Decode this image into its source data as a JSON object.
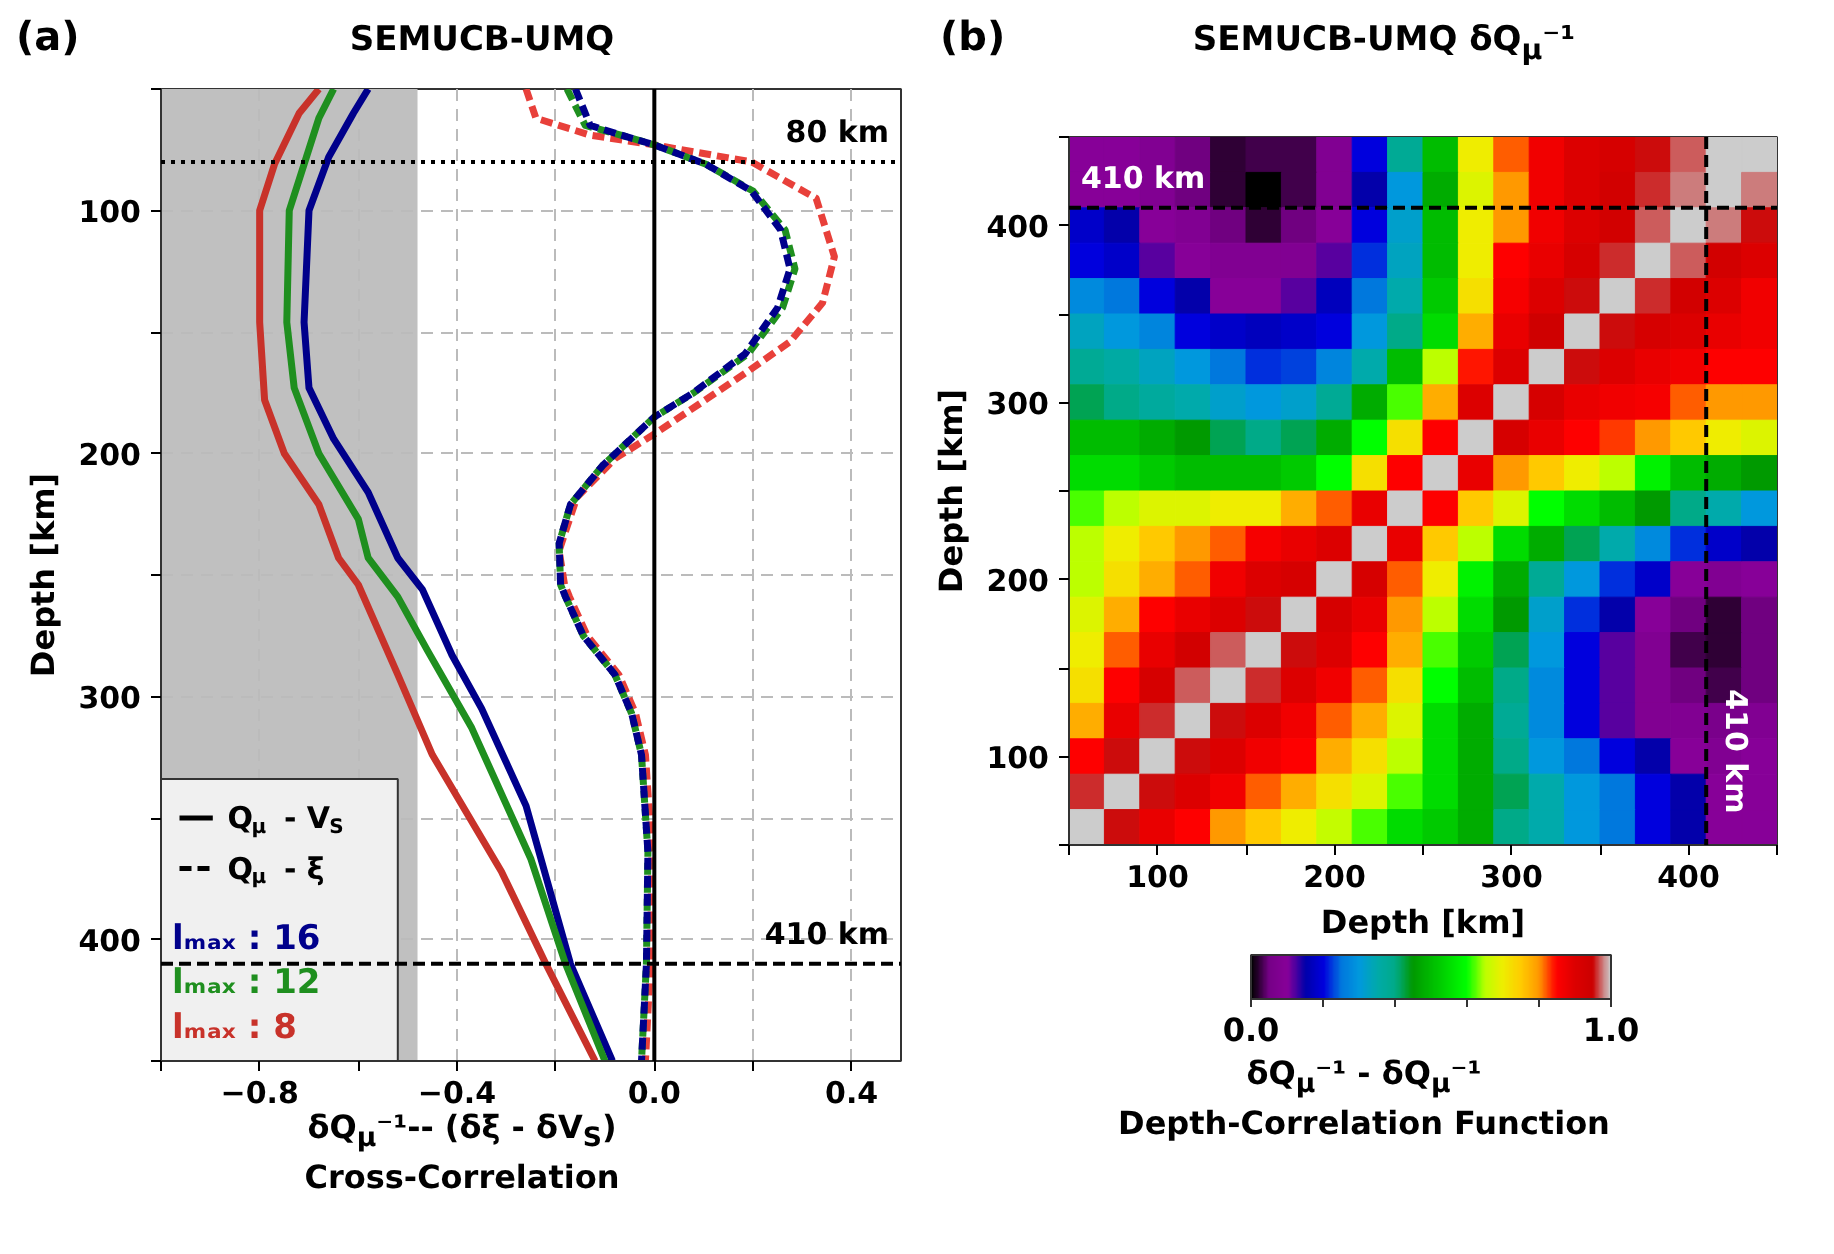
{
  "chart_data": [
    {
      "type": "line",
      "title": "SEMUCB-UMQ",
      "annotations": [
        "(a)",
        "Q$_{μ}$ - V$_{S}$",
        "Q$_{μ}$ - ξ"
      ],
      "xlabel": "δQ$_{μ}$⁻¹-- (δξ - δV$_{S}$)\nCross-Correlation",
      "ylabel": "Depth [km]",
      "xlim": [
        -1.0,
        0.5
      ],
      "ylim": [
        450,
        50
      ],
      "xticks": [
        {
          "value": -1.0,
          "label": null
        },
        {
          "value": -0.8,
          "label": "−0.8"
        },
        {
          "value": -0.6,
          "label": null
        },
        {
          "value": -0.4,
          "label": "−0.4"
        },
        {
          "value": -0.2,
          "label": null
        },
        {
          "value": 0,
          "label": "0.0"
        },
        {
          "value": 0.2,
          "label": null
        },
        0.4
      ],
      "yticks": [
        {
          "value": 50,
          "label": null
        },
        100,
        {
          "value": 150,
          "label": null
        },
        200,
        {
          "value": 250,
          "label": null
        },
        300,
        {
          "value": 350,
          "label": null
        },
        400,
        {
          "value": 450,
          "label": null
        }
      ],
      "grid": true,
      "legend": "bottom left",
      "bands": [
        {
          "axis": "x",
          "from": -1.0,
          "to": -0.48,
          "color": "#c0c0c0"
        }
      ],
      "ref_lines": [
        {
          "axis": "y",
          "value": 80,
          "label": "80 km",
          "line_style": "dotted",
          "color": "#000000"
        },
        {
          "axis": "y",
          "value": 410,
          "label": "410 km",
          "line_style": "dashed",
          "color": "#000000"
        },
        {
          "axis": "x",
          "value": 0,
          "line_style": "solid",
          "color": "#000000"
        }
      ],
      "series": [
        {
          "name": "lₘₐₓ : 16",
          "color": "#00008b",
          "line_style": "solid",
          "x": [
            -0.58,
            -0.61,
            -0.66,
            -0.7,
            -0.71,
            -0.7,
            -0.65,
            -0.58,
            -0.52,
            -0.47,
            -0.41,
            -0.35,
            -0.26,
            -0.17,
            -0.085
          ],
          "values": [
            50,
            60,
            78,
            100,
            146,
            173,
            194,
            216,
            243,
            256,
            283,
            305,
            345,
            410,
            450
          ]
        },
        {
          "name": "lₘₐₓ : 12",
          "color": "#1f8f1f",
          "line_style": "solid",
          "x": [
            -0.65,
            -0.68,
            -0.71,
            -0.74,
            -0.745,
            -0.73,
            -0.68,
            -0.6,
            -0.58,
            -0.52,
            -0.46,
            -0.37,
            -0.25,
            -0.18,
            -0.1
          ],
          "values": [
            50,
            62,
            81,
            100,
            146,
            173,
            200,
            227,
            243,
            259,
            281,
            313,
            367,
            410,
            450
          ]
        },
        {
          "name": "lₘₐₓ : 8",
          "color": "#c8322a",
          "line_style": "solid",
          "x": [
            -0.68,
            -0.72,
            -0.77,
            -0.8,
            -0.8,
            -0.79,
            -0.75,
            -0.68,
            -0.64,
            -0.6,
            -0.52,
            -0.45,
            -0.31,
            -0.22,
            -0.12
          ],
          "values": [
            50,
            60,
            81,
            100,
            146,
            178,
            200,
            221,
            243,
            254,
            291,
            324,
            372,
            410,
            450
          ]
        },
        {
          "color": "#e8403a",
          "line_style": "dashed",
          "x": [
            -0.26,
            -0.24,
            -0.13,
            0.0,
            0.197,
            0.328,
            0.365,
            0.341,
            0.275,
            0.184,
            0.0,
            -0.079,
            -0.157,
            -0.193,
            -0.182,
            -0.172,
            -0.136,
            -0.072,
            -0.038,
            -0.018,
            -0.005,
            -0.008,
            -0.018
          ],
          "values": [
            50,
            62,
            69,
            73,
            80,
            95,
            119,
            138,
            154,
            167,
            192,
            202,
            218,
            240,
            254,
            259,
            275,
            291,
            307,
            324,
            364,
            410,
            450
          ]
        },
        {
          "color": "#1f8f1f",
          "line_style": "dashed",
          "x": [
            -0.177,
            -0.14,
            -0.05,
            0.0,
            0.105,
            0.2,
            0.265,
            0.285,
            0.26,
            0.19,
            0.08,
            0.0,
            -0.105,
            -0.17,
            -0.193,
            -0.19,
            -0.18,
            -0.144,
            -0.08,
            -0.046,
            -0.026,
            -0.013,
            -0.016,
            -0.026
          ],
          "values": [
            50,
            65,
            70,
            73,
            81,
            92,
            108,
            124,
            140,
            159,
            175,
            185,
            205,
            221,
            237,
            254,
            259,
            275,
            291,
            307,
            324,
            364,
            410,
            450
          ]
        },
        {
          "color": "#00008b",
          "line_style": "dashed",
          "x": [
            -0.16,
            -0.13,
            -0.05,
            0.0,
            0.105,
            0.197,
            0.256,
            0.275,
            0.25,
            0.184,
            0.079,
            0.0,
            -0.105,
            -0.17,
            -0.193,
            -0.19,
            -0.18,
            -0.144,
            -0.08,
            -0.046,
            -0.026,
            -0.013,
            -0.016,
            -0.026
          ],
          "values": [
            50,
            65,
            70,
            73,
            81,
            92,
            108,
            124,
            140,
            159,
            175,
            185,
            205,
            221,
            237,
            254,
            259,
            275,
            291,
            307,
            324,
            364,
            410,
            450
          ]
        }
      ]
    },
    {
      "type": "heatmap",
      "title": "SEMUCB-UMQ δQ$_{μ}$⁻¹",
      "annotations": [
        "(b)"
      ],
      "xlabel": "Depth [km]",
      "ylabel": "Depth [km]",
      "clabel": "δQ$_{μ}$⁻¹ - δQ$_{μ}$⁻¹\nDepth-Correlation Function",
      "x": [
        60,
        80,
        100,
        120,
        140,
        160,
        180,
        200,
        220,
        240,
        260,
        280,
        300,
        320,
        340,
        360,
        380,
        400,
        420,
        440
      ],
      "xlim": [
        50,
        450
      ],
      "ylim": [
        50,
        450
      ],
      "xticks": [
        {
          "value": 50,
          "label": null
        },
        100,
        {
          "value": 150,
          "label": null
        },
        200,
        {
          "value": 250,
          "label": null
        },
        300,
        {
          "value": 350,
          "label": null
        },
        400,
        {
          "value": 450,
          "label": null
        }
      ],
      "yticks": [
        {
          "value": 50,
          "label": null
        },
        100,
        {
          "value": 150,
          "label": null
        },
        200,
        {
          "value": 250,
          "label": null
        },
        300,
        {
          "value": 350,
          "label": null
        },
        400,
        {
          "value": 450,
          "label": null
        }
      ],
      "clim": [
        0,
        1
      ],
      "cticks": [
        {
          "value": 0,
          "label": "0.0"
        },
        {
          "value": 0.2,
          "label": null
        },
        {
          "value": 0.4,
          "label": null
        },
        {
          "value": 0.6,
          "label": null
        },
        {
          "value": 0.8,
          "label": null
        },
        {
          "value": 1,
          "label": "1.0"
        }
      ],
      "ref_lines": [
        {
          "axis": "y",
          "value": 410,
          "label": "410 km",
          "line_style": "dashed",
          "color": "#000000"
        },
        {
          "axis": "x",
          "value": 410,
          "label": "410 km",
          "line_style": "dashed",
          "color": "#000000"
        }
      ],
      "cells": [
        [
          0.1,
          0.1,
          0.08,
          0.05,
          0.02,
          0.03,
          0.03,
          0.08,
          0.2,
          0.38,
          0.5,
          0.7,
          0.82,
          0.87,
          0.9,
          0.92,
          0.95,
          0.97,
          1,
          1
        ],
        [
          0.1,
          0.1,
          0.08,
          0.05,
          0.02,
          0,
          0.03,
          0.08,
          0.15,
          0.3,
          0.48,
          0.68,
          0.8,
          0.87,
          0.9,
          0.93,
          0.96,
          0.98,
          1,
          0.98
        ],
        [
          0.18,
          0.15,
          0.1,
          0.08,
          0.05,
          0.02,
          0.05,
          0.1,
          0.2,
          0.32,
          0.5,
          0.7,
          0.8,
          0.87,
          0.9,
          0.93,
          0.97,
          1,
          0.98,
          0.95
        ],
        [
          0.2,
          0.18,
          0.12,
          0.1,
          0.08,
          0.08,
          0.08,
          0.12,
          0.22,
          0.33,
          0.5,
          0.7,
          0.85,
          0.88,
          0.92,
          0.96,
          1,
          0.97,
          0.93,
          0.9
        ],
        [
          0.28,
          0.25,
          0.2,
          0.15,
          0.1,
          0.1,
          0.12,
          0.17,
          0.25,
          0.35,
          0.52,
          0.72,
          0.86,
          0.9,
          0.95,
          1,
          0.96,
          0.93,
          0.9,
          0.87
        ],
        [
          0.33,
          0.3,
          0.27,
          0.2,
          0.18,
          0.17,
          0.18,
          0.2,
          0.3,
          0.4,
          0.55,
          0.78,
          0.88,
          0.94,
          1,
          0.95,
          0.92,
          0.9,
          0.88,
          0.87
        ],
        [
          0.38,
          0.36,
          0.33,
          0.3,
          0.25,
          0.22,
          0.23,
          0.27,
          0.35,
          0.5,
          0.65,
          0.84,
          0.9,
          1,
          0.95,
          0.9,
          0.88,
          0.87,
          0.85,
          0.85
        ],
        [
          0.42,
          0.4,
          0.37,
          0.35,
          0.32,
          0.3,
          0.32,
          0.38,
          0.48,
          0.62,
          0.78,
          0.9,
          1,
          0.92,
          0.88,
          0.87,
          0.86,
          0.82,
          0.8,
          0.8
        ],
        [
          0.5,
          0.5,
          0.48,
          0.45,
          0.42,
          0.4,
          0.42,
          0.48,
          0.6,
          0.72,
          0.85,
          1,
          0.92,
          0.88,
          0.85,
          0.83,
          0.8,
          0.75,
          0.7,
          0.68
        ],
        [
          0.55,
          0.55,
          0.52,
          0.5,
          0.5,
          0.5,
          0.52,
          0.6,
          0.72,
          0.85,
          1,
          0.88,
          0.8,
          0.75,
          0.7,
          0.65,
          0.58,
          0.5,
          0.48,
          0.45
        ],
        [
          0.62,
          0.65,
          0.68,
          0.68,
          0.7,
          0.7,
          0.78,
          0.82,
          0.88,
          1,
          0.85,
          0.75,
          0.68,
          0.6,
          0.55,
          0.5,
          0.45,
          0.4,
          0.35,
          0.3
        ],
        [
          0.65,
          0.7,
          0.75,
          0.8,
          0.82,
          0.86,
          0.88,
          0.9,
          1,
          0.88,
          0.75,
          0.65,
          0.55,
          0.48,
          0.42,
          0.35,
          0.28,
          0.22,
          0.18,
          0.15
        ],
        [
          0.65,
          0.72,
          0.78,
          0.82,
          0.87,
          0.9,
          0.92,
          1,
          0.92,
          0.82,
          0.7,
          0.58,
          0.48,
          0.38,
          0.3,
          0.22,
          0.18,
          0.1,
          0.08,
          0.1
        ],
        [
          0.68,
          0.78,
          0.85,
          0.88,
          0.9,
          0.95,
          1,
          0.92,
          0.88,
          0.8,
          0.65,
          0.55,
          0.45,
          0.32,
          0.22,
          0.15,
          0.1,
          0.05,
          0.02,
          0.05
        ],
        [
          0.7,
          0.82,
          0.88,
          0.93,
          0.97,
          1,
          0.95,
          0.9,
          0.85,
          0.78,
          0.62,
          0.52,
          0.42,
          0.3,
          0.2,
          0.12,
          0.08,
          0.03,
          0.02,
          0.05
        ],
        [
          0.72,
          0.85,
          0.92,
          0.97,
          1,
          0.96,
          0.9,
          0.87,
          0.82,
          0.72,
          0.6,
          0.5,
          0.4,
          0.28,
          0.2,
          0.12,
          0.08,
          0.05,
          0.03,
          0.05
        ],
        [
          0.78,
          0.88,
          0.96,
          1,
          0.95,
          0.9,
          0.87,
          0.82,
          0.78,
          0.68,
          0.55,
          0.48,
          0.38,
          0.28,
          0.2,
          0.12,
          0.08,
          0.08,
          0.06,
          0.08
        ],
        [
          0.85,
          0.95,
          1,
          0.95,
          0.9,
          0.87,
          0.85,
          0.78,
          0.72,
          0.65,
          0.55,
          0.48,
          0.4,
          0.3,
          0.25,
          0.2,
          0.15,
          0.1,
          0.08,
          0.1
        ],
        [
          0.96,
          1,
          0.95,
          0.9,
          0.87,
          0.82,
          0.78,
          0.72,
          0.68,
          0.62,
          0.55,
          0.48,
          0.42,
          0.35,
          0.3,
          0.25,
          0.2,
          0.15,
          0.1,
          0.1
        ],
        [
          1,
          0.95,
          0.88,
          0.85,
          0.8,
          0.75,
          0.7,
          0.66,
          0.62,
          0.55,
          0.52,
          0.48,
          0.4,
          0.35,
          0.3,
          0.25,
          0.2,
          0.15,
          0.1,
          0.1
        ]
      ]
    }
  ]
}
